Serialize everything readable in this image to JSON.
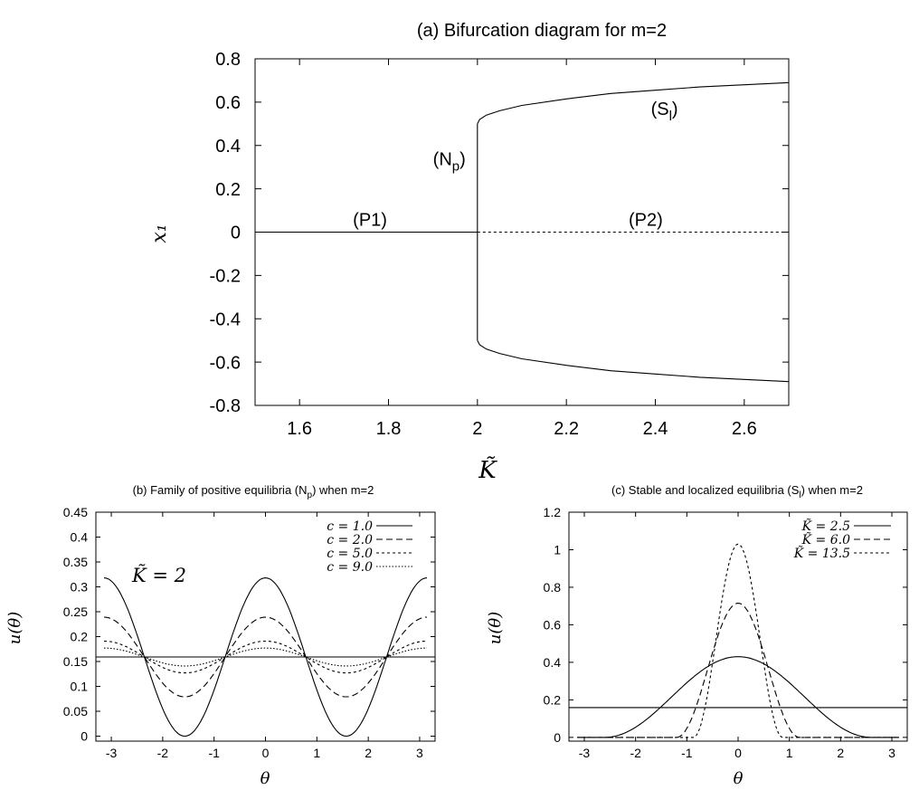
{
  "chart_data": [
    {
      "type": "line",
      "title": "(a) Bifurcation diagram for m=2",
      "xlabel": "K̃",
      "ylabel": "x₁",
      "xlim": [
        1.5,
        2.7
      ],
      "ylim": [
        -0.8,
        0.8
      ],
      "xticks": [
        "1.6",
        "1.8",
        "2",
        "2.2",
        "2.4",
        "2.6"
      ],
      "xtick_values": [
        1.6,
        1.8,
        2.0,
        2.2,
        2.4,
        2.6
      ],
      "yticks": [
        "0.8",
        "0.6",
        "0.4",
        "0.2",
        "0",
        "-0.2",
        "-0.4",
        "-0.6",
        "-0.8"
      ],
      "ytick_values": [
        0.8,
        0.6,
        0.4,
        0.2,
        0,
        -0.2,
        -0.4,
        -0.6,
        -0.8
      ],
      "annotations": [
        {
          "text": "(P1)",
          "x": 1.72,
          "y": 0.03
        },
        {
          "text": "(P2)",
          "x": 2.34,
          "y": 0.03
        },
        {
          "text": "(N",
          "sub": "p",
          "text2": ")",
          "x": 1.9,
          "y": 0.31
        },
        {
          "text": "(S",
          "sub": "l",
          "text2": ")",
          "x": 2.39,
          "y": 0.54
        }
      ],
      "grid": false,
      "series": [
        {
          "style": "solid",
          "x": [
            1.5,
            2.0
          ],
          "y": [
            0,
            0
          ]
        },
        {
          "style": "dotted",
          "x": [
            2.0,
            2.7
          ],
          "y": [
            0,
            0
          ]
        },
        {
          "style": "solid",
          "x": [
            2.0,
            2.0
          ],
          "y": [
            -0.5,
            0.5
          ]
        },
        {
          "style": "solid",
          "x": [
            2.0,
            2.005,
            2.02,
            2.05,
            2.1,
            2.2,
            2.3,
            2.4,
            2.5,
            2.6,
            2.7
          ],
          "y": [
            0.5,
            0.52,
            0.54,
            0.56,
            0.585,
            0.615,
            0.64,
            0.655,
            0.67,
            0.68,
            0.69
          ]
        },
        {
          "style": "solid",
          "x": [
            2.0,
            2.005,
            2.02,
            2.05,
            2.1,
            2.2,
            2.3,
            2.4,
            2.5,
            2.6,
            2.7
          ],
          "y": [
            -0.5,
            -0.52,
            -0.54,
            -0.56,
            -0.585,
            -0.615,
            -0.64,
            -0.655,
            -0.67,
            -0.68,
            -0.69
          ]
        }
      ]
    },
    {
      "type": "line",
      "title": "(b) Family of positive equilibria (N",
      "title_sub": "p",
      "title_tail": ") when m=2",
      "xlabel": "θ",
      "ylabel": "u(θ)",
      "xlim": [
        -3.3,
        3.3
      ],
      "ylim": [
        -0.01,
        0.45
      ],
      "xticks": [
        "-3",
        "-2",
        "-1",
        "0",
        "1",
        "2",
        "3"
      ],
      "xtick_values": [
        -3,
        -2,
        -1,
        0,
        1,
        2,
        3
      ],
      "yticks": [
        "0.45",
        "0.4",
        "0.35",
        "0.3",
        "0.25",
        "0.2",
        "0.15",
        "0.1",
        "0.05",
        "0"
      ],
      "ytick_values": [
        0.45,
        0.4,
        0.35,
        0.3,
        0.25,
        0.2,
        0.15,
        0.1,
        0.05,
        0
      ],
      "annotation": "K̃ = 2",
      "legend_position": "top-right",
      "series": [
        {
          "name": "c = 1.0",
          "style": "solid",
          "model": "cos",
          "base": 0.159,
          "amp": 0.159
        },
        {
          "name": "c = 2.0",
          "style": "dashed",
          "model": "cos",
          "base": 0.159,
          "amp": 0.08
        },
        {
          "name": "c = 5.0",
          "style": "dotted",
          "model": "cos",
          "base": 0.159,
          "amp": 0.032
        },
        {
          "name": "c = 9.0",
          "style": "finedotted",
          "model": "cos",
          "base": 0.159,
          "amp": 0.018
        },
        {
          "style": "solid",
          "model": "const",
          "base": 0.159
        }
      ]
    },
    {
      "type": "line",
      "title": "(c) Stable and localized equilibria (S",
      "title_sub": "l",
      "title_tail": ") when m=2",
      "xlabel": "θ",
      "ylabel": "u(θ)",
      "xlim": [
        -3.3,
        3.3
      ],
      "ylim": [
        -0.02,
        1.2
      ],
      "xticks": [
        "-3",
        "-2",
        "-1",
        "0",
        "1",
        "2",
        "3"
      ],
      "xtick_values": [
        -3,
        -2,
        -1,
        0,
        1,
        2,
        3
      ],
      "yticks": [
        "1.2",
        "1",
        "0.8",
        "0.6",
        "0.4",
        "0.2",
        "0"
      ],
      "ytick_values": [
        1.2,
        1.0,
        0.8,
        0.6,
        0.4,
        0.2,
        0
      ],
      "legend_position": "top-right",
      "series": [
        {
          "name": "K̃ = 2.5",
          "style": "solid",
          "model": "bump",
          "peak": 0.43,
          "halfwidth": 2.6
        },
        {
          "name": "K̃ = 6.0",
          "style": "dashed",
          "model": "bump",
          "peak": 0.715,
          "halfwidth": 1.2
        },
        {
          "name": "K̃ = 13.5",
          "style": "dotted",
          "model": "bump",
          "peak": 1.03,
          "halfwidth": 0.87
        },
        {
          "style": "solid",
          "model": "const",
          "base": 0.159
        }
      ]
    }
  ]
}
